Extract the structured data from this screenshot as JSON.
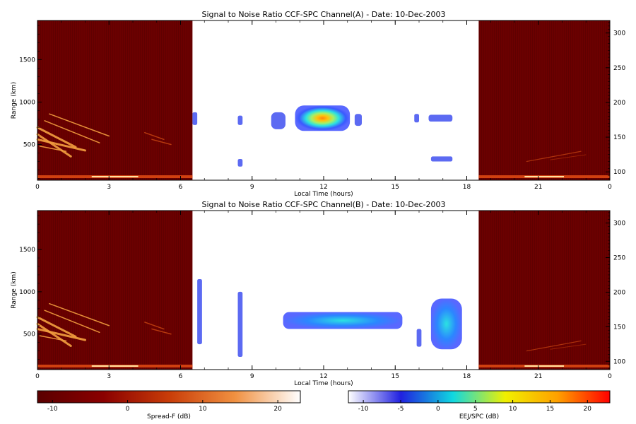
{
  "chart_data": [
    {
      "type": "heatmap",
      "title": "Signal to Noise Ratio CCF-SPC Channel(A) - Date: 10-Dec-2003",
      "xlabel": "Local Time (hours)",
      "ylabel": "Range (km)",
      "x_ticks": [
        "0",
        "3",
        "6",
        "9",
        "12",
        "15",
        "18",
        "21",
        "0"
      ],
      "y_ticks": [
        "500",
        "1000",
        "1500"
      ],
      "y2_ticks": [
        "100",
        "150",
        "200",
        "250",
        "300"
      ],
      "xlim": [
        0,
        24
      ],
      "ylim": [
        80,
        1960
      ],
      "y2lim": [
        88,
        318
      ],
      "spread_f_windows_hours": [
        [
          0,
          6.5
        ],
        [
          18.5,
          24
        ]
      ],
      "ejj_patches": [
        {
          "x": [
            6.5,
            6.7
          ],
          "y": [
            730,
            880
          ]
        },
        {
          "x": [
            8.4,
            8.6
          ],
          "y": [
            730,
            840
          ]
        },
        {
          "x": [
            8.4,
            8.6
          ],
          "y": [
            240,
            330
          ]
        },
        {
          "x": [
            9.8,
            10.4
          ],
          "y": [
            680,
            880
          ]
        },
        {
          "x": [
            10.8,
            13.1
          ],
          "y": [
            660,
            960
          ]
        },
        {
          "x": [
            13.3,
            13.6
          ],
          "y": [
            720,
            860
          ]
        },
        {
          "x": [
            15.8,
            16.0
          ],
          "y": [
            760,
            860
          ]
        },
        {
          "x": [
            16.4,
            17.4
          ],
          "y": [
            770,
            850
          ]
        },
        {
          "x": [
            16.5,
            17.4
          ],
          "y": [
            300,
            360
          ]
        }
      ]
    },
    {
      "type": "heatmap",
      "title": "Signal to Noise Ratio CCF-SPC Channel(B) - Date: 10-Dec-2003",
      "xlabel": "Local Time (hours)",
      "ylabel": "Range (km)",
      "x_ticks": [
        "0",
        "3",
        "6",
        "9",
        "12",
        "15",
        "18",
        "21",
        "0"
      ],
      "y_ticks": [
        "500",
        "1000",
        "1500"
      ],
      "y2_ticks": [
        "100",
        "150",
        "200",
        "250",
        "300"
      ],
      "xlim": [
        0,
        24
      ],
      "ylim": [
        80,
        1960
      ],
      "y2lim": [
        88,
        318
      ],
      "spread_f_windows_hours": [
        [
          0,
          6.5
        ],
        [
          18.5,
          24
        ]
      ],
      "ejj_patches": [
        {
          "x": [
            6.7,
            6.9
          ],
          "y": [
            380,
            1150
          ]
        },
        {
          "x": [
            8.4,
            8.6
          ],
          "y": [
            230,
            1000
          ]
        },
        {
          "x": [
            10.3,
            15.3
          ],
          "y": [
            560,
            760
          ]
        },
        {
          "x": [
            15.9,
            16.1
          ],
          "y": [
            350,
            560
          ]
        },
        {
          "x": [
            16.5,
            17.8
          ],
          "y": [
            320,
            920
          ]
        }
      ]
    }
  ],
  "colorbars": [
    {
      "label": "Spread-F (dB)",
      "ticks": [
        "-10",
        "0",
        "10",
        "20"
      ],
      "range": [
        -12,
        23
      ],
      "colors": [
        "#6b0000",
        "#a81a00",
        "#d65a10",
        "#f0a050",
        "#ffffff"
      ]
    },
    {
      "label": "EEJ/SPC (dB)",
      "ticks": [
        "-10",
        "-5",
        "0",
        "5",
        "10",
        "15",
        "20"
      ],
      "range": [
        -12,
        23
      ],
      "colors": [
        "#ffffff",
        "#2020e0",
        "#10d8e0",
        "#ffff00",
        "#ff1010"
      ]
    }
  ]
}
